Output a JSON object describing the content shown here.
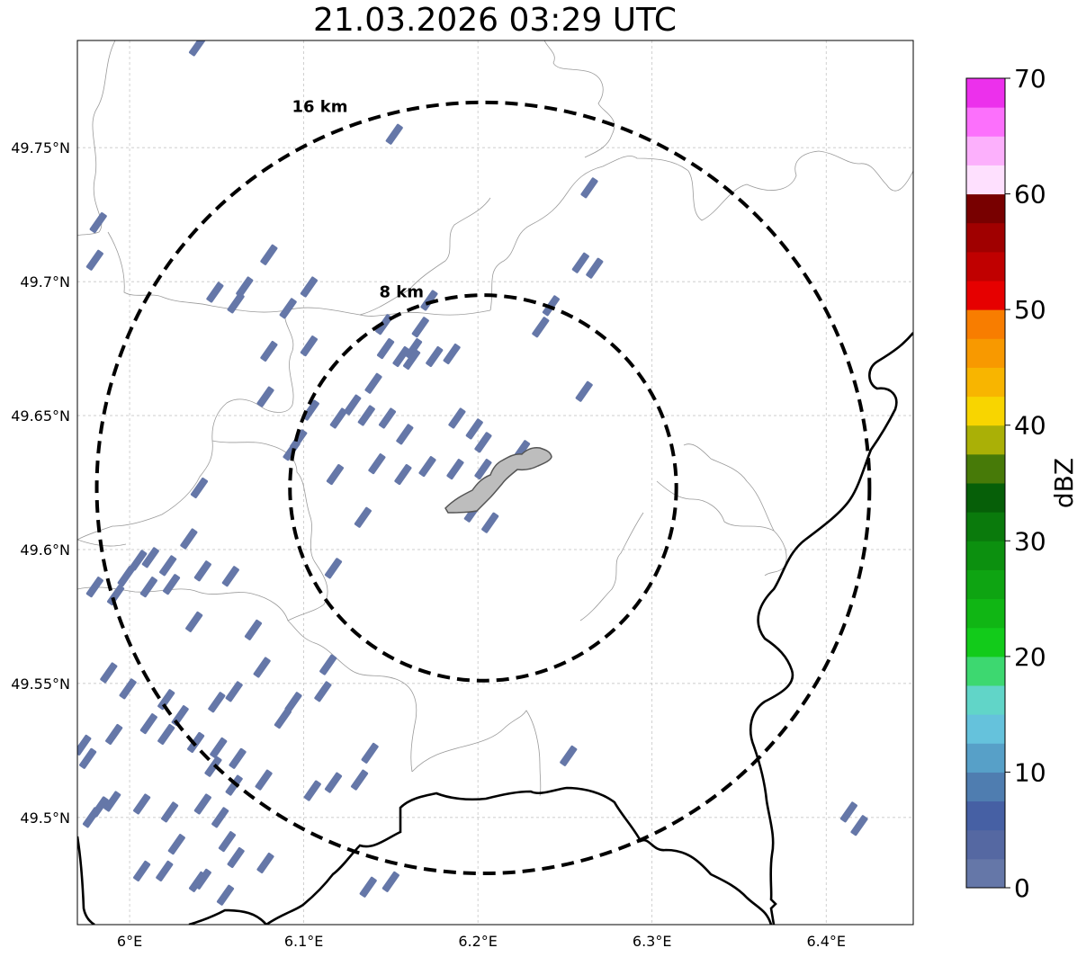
{
  "title": "21.03.2026 03:29 UTC",
  "map": {
    "lon_range": [
      5.97,
      6.45
    ],
    "lat_range": [
      49.46,
      49.79
    ],
    "x_ticks": [
      {
        "value": 6.0,
        "label": "6°E"
      },
      {
        "value": 6.1,
        "label": "6.1°E"
      },
      {
        "value": 6.2,
        "label": "6.2°E"
      },
      {
        "value": 6.3,
        "label": "6.3°E"
      },
      {
        "value": 6.4,
        "label": "6.4°E"
      }
    ],
    "y_ticks": [
      {
        "value": 49.5,
        "label": "49.5°N"
      },
      {
        "value": 49.55,
        "label": "49.55°N"
      },
      {
        "value": 49.6,
        "label": "49.6°N"
      },
      {
        "value": 49.65,
        "label": "49.65°N"
      },
      {
        "value": 49.7,
        "label": "49.7°N"
      },
      {
        "value": 49.75,
        "label": "49.75°N"
      }
    ],
    "grid": true,
    "center": {
      "lon": 6.203,
      "lat": 49.623
    },
    "range_rings": [
      {
        "radius_km": 8,
        "label": "8 km"
      },
      {
        "radius_km": 16,
        "label": "16 km"
      }
    ],
    "echo_color": "#6577a8",
    "echoes": [
      [
        6.039,
        49.788
      ],
      [
        6.152,
        49.755
      ],
      [
        6.264,
        49.735
      ],
      [
        6.203,
        49.64
      ],
      [
        6.198,
        49.645
      ],
      [
        5.982,
        49.722
      ],
      [
        5.98,
        49.708
      ],
      [
        6.08,
        49.71
      ],
      [
        6.066,
        49.698
      ],
      [
        6.061,
        49.692
      ],
      [
        6.049,
        49.696
      ],
      [
        6.103,
        49.698
      ],
      [
        6.259,
        49.707
      ],
      [
        6.267,
        49.705
      ],
      [
        6.091,
        49.69
      ],
      [
        6.146,
        49.684
      ],
      [
        6.172,
        49.693
      ],
      [
        6.167,
        49.683
      ],
      [
        6.163,
        49.675
      ],
      [
        6.242,
        49.691
      ],
      [
        6.236,
        49.683
      ],
      [
        6.08,
        49.674
      ],
      [
        6.103,
        49.676
      ],
      [
        6.156,
        49.672
      ],
      [
        6.162,
        49.671
      ],
      [
        6.147,
        49.675
      ],
      [
        6.175,
        49.672
      ],
      [
        6.185,
        49.673
      ],
      [
        6.128,
        49.654
      ],
      [
        6.12,
        49.649
      ],
      [
        6.14,
        49.662
      ],
      [
        6.136,
        49.65
      ],
      [
        6.148,
        49.649
      ],
      [
        6.261,
        49.659
      ],
      [
        6.078,
        49.657
      ],
      [
        6.104,
        49.652
      ],
      [
        6.097,
        49.641
      ],
      [
        6.093,
        49.637
      ],
      [
        6.188,
        49.649
      ],
      [
        6.158,
        49.643
      ],
      [
        6.142,
        49.632
      ],
      [
        6.171,
        49.631
      ],
      [
        6.187,
        49.63
      ],
      [
        6.157,
        49.628
      ],
      [
        6.225,
        49.637
      ],
      [
        6.118,
        49.628
      ],
      [
        6.203,
        49.63
      ],
      [
        6.04,
        49.623
      ],
      [
        6.134,
        49.612
      ],
      [
        6.2,
        49.618
      ],
      [
        6.197,
        49.614
      ],
      [
        6.207,
        49.61
      ],
      [
        6.034,
        49.604
      ],
      [
        6.005,
        49.596
      ],
      [
        5.998,
        49.59
      ],
      [
        5.992,
        49.583
      ],
      [
        6.012,
        49.597
      ],
      [
        6.022,
        49.594
      ],
      [
        6.011,
        49.586
      ],
      [
        6.024,
        49.587
      ],
      [
        6.042,
        49.592
      ],
      [
        6.058,
        49.59
      ],
      [
        6.117,
        49.593
      ],
      [
        5.98,
        49.586
      ],
      [
        6.037,
        49.573
      ],
      [
        6.071,
        49.57
      ],
      [
        6.114,
        49.557
      ],
      [
        6.076,
        49.556
      ],
      [
        6.06,
        49.547
      ],
      [
        6.05,
        49.543
      ],
      [
        6.111,
        49.547
      ],
      [
        6.094,
        49.543
      ],
      [
        6.088,
        49.537
      ],
      [
        5.988,
        49.554
      ],
      [
        5.999,
        49.548
      ],
      [
        6.021,
        49.544
      ],
      [
        6.029,
        49.538
      ],
      [
        6.011,
        49.535
      ],
      [
        6.021,
        49.531
      ],
      [
        6.038,
        49.528
      ],
      [
        6.062,
        49.522
      ],
      [
        6.051,
        49.526
      ],
      [
        6.048,
        49.519
      ],
      [
        6.06,
        49.512
      ],
      [
        6.077,
        49.514
      ],
      [
        6.105,
        49.51
      ],
      [
        5.991,
        49.531
      ],
      [
        5.973,
        49.527
      ],
      [
        5.976,
        49.522
      ],
      [
        6.007,
        49.505
      ],
      [
        6.042,
        49.505
      ],
      [
        6.023,
        49.502
      ],
      [
        6.027,
        49.49
      ],
      [
        6.138,
        49.524
      ],
      [
        6.117,
        49.513
      ],
      [
        6.132,
        49.514
      ],
      [
        6.252,
        49.523
      ],
      [
        5.978,
        49.5
      ],
      [
        5.983,
        49.504
      ],
      [
        5.99,
        49.506
      ],
      [
        6.052,
        49.5
      ],
      [
        6.056,
        49.491
      ],
      [
        6.061,
        49.485
      ],
      [
        6.078,
        49.483
      ],
      [
        6.042,
        49.477
      ],
      [
        6.039,
        49.476
      ],
      [
        6.02,
        49.48
      ],
      [
        6.007,
        49.48
      ],
      [
        6.055,
        49.471
      ],
      [
        6.137,
        49.474
      ],
      [
        6.15,
        49.476
      ],
      [
        6.413,
        49.502
      ],
      [
        6.419,
        49.497
      ]
    ]
  },
  "colorbar": {
    "label": "dBZ",
    "ticks": [
      0,
      10,
      20,
      30,
      40,
      50,
      60,
      70
    ],
    "levels": [
      0,
      2.5,
      5,
      7.5,
      10,
      12.5,
      15,
      17.5,
      20,
      22.5,
      25,
      27.5,
      30,
      32.5,
      35,
      37.5,
      40,
      42.5,
      45,
      47.5,
      50,
      52.5,
      55,
      57.5,
      60,
      62.5,
      65,
      67.5,
      70
    ],
    "colors": [
      "#6577a8",
      "#5568a2",
      "#4660a4",
      "#4f7db0",
      "#57a0c8",
      "#65c2dc",
      "#61d5c8",
      "#3dd870",
      "#12cb1a",
      "#10b614",
      "#0ea412",
      "#0c900f",
      "#0a7a0c",
      "#065f08",
      "#477a08",
      "#aab006",
      "#f8d500",
      "#f8b500",
      "#f89900",
      "#f87d00",
      "#e60000",
      "#c00000",
      "#a00000",
      "#780000",
      "#fee0fe",
      "#fcb0fc",
      "#fc70fc",
      "#ec30ec"
    ]
  }
}
